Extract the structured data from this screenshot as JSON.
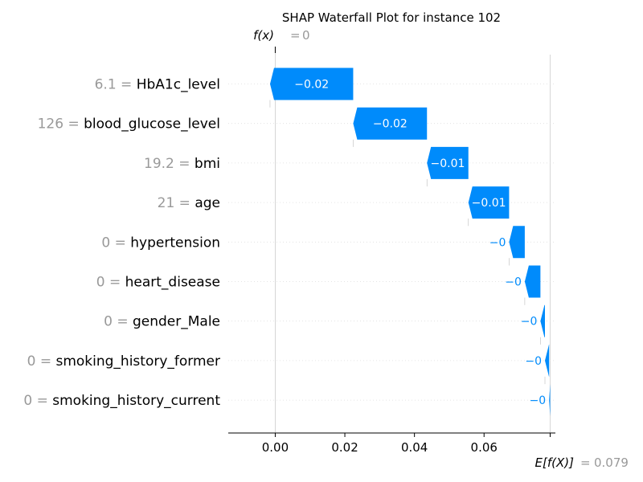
{
  "chart_data": {
    "type": "waterfall",
    "title": "SHAP Waterfall Plot for instance 102",
    "fx_label": "f(x)",
    "fx_value": "0",
    "ex_label": "E[f(X)]",
    "ex_value": "0.079",
    "base_value": 0.079,
    "final_value": 0,
    "xlim": [
      -0.0135,
      0.0805
    ],
    "x_ticks": [
      0.0,
      0.02,
      0.04,
      0.06
    ],
    "x_tick_labels": [
      "0.00",
      "0.02",
      "0.04",
      "0.06"
    ],
    "features": [
      {
        "value": "6.1",
        "name": "HbA1c_level",
        "shap": -0.0239,
        "label": "−0.02"
      },
      {
        "value": "126",
        "name": "blood_glucose_level",
        "shap": -0.0212,
        "label": "−0.02"
      },
      {
        "value": "19.2",
        "name": "bmi",
        "shap": -0.0119,
        "label": "−0.01"
      },
      {
        "value": "21",
        "name": "age",
        "shap": -0.0117,
        "label": "−0.01"
      },
      {
        "value": "0",
        "name": "hypertension",
        "shap": -0.0045,
        "label": "−0"
      },
      {
        "value": "0",
        "name": "heart_disease",
        "shap": -0.0045,
        "label": "−0"
      },
      {
        "value": "0",
        "name": "gender_Male",
        "shap": -0.0013,
        "label": "−0"
      },
      {
        "value": "0",
        "name": "smoking_history_former",
        "shap": -0.0012,
        "label": "−0"
      },
      {
        "value": "0",
        "name": "smoking_history_current",
        "shap": -0.0003,
        "label": "−0"
      }
    ],
    "colors": {
      "negative": "#008bfb",
      "positive": "#ff0051",
      "muted": "#999999"
    }
  }
}
